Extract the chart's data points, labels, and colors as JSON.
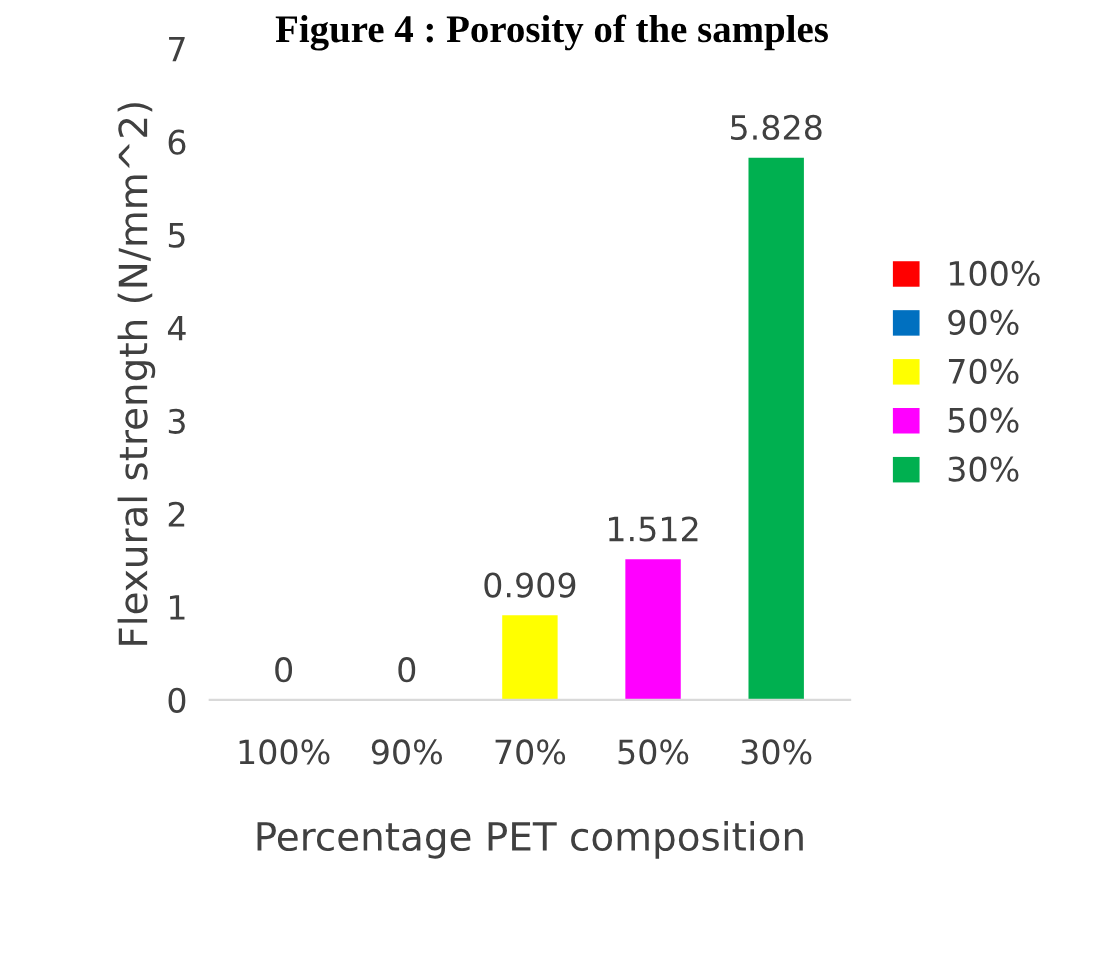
{
  "chart_data": {
    "type": "bar",
    "title": "Figure 4 : Porosity of the samples",
    "xlabel": "Percentage PET composition",
    "ylabel": "Flexural strength (N/mm^2)",
    "categories": [
      "100%",
      "90%",
      "70%",
      "50%",
      "30%"
    ],
    "series": [
      {
        "name": "100%",
        "color": "#ff0000",
        "values": [
          0,
          null,
          null,
          null,
          null
        ]
      },
      {
        "name": "90%",
        "color": "#0070c0",
        "values": [
          null,
          0,
          null,
          null,
          null
        ]
      },
      {
        "name": "70%",
        "color": "#ffff00",
        "values": [
          null,
          null,
          0.909,
          null,
          null
        ]
      },
      {
        "name": "50%",
        "color": "#ff00ff",
        "values": [
          null,
          null,
          null,
          1.512,
          null
        ]
      },
      {
        "name": "30%",
        "color": "#00b050",
        "values": [
          null,
          null,
          null,
          null,
          5.828
        ]
      }
    ],
    "ylim": [
      0,
      7
    ],
    "yticks": [
      0,
      1,
      2,
      3,
      4,
      5,
      6,
      7
    ],
    "data_labels": true,
    "grid": false,
    "legend": "right"
  }
}
